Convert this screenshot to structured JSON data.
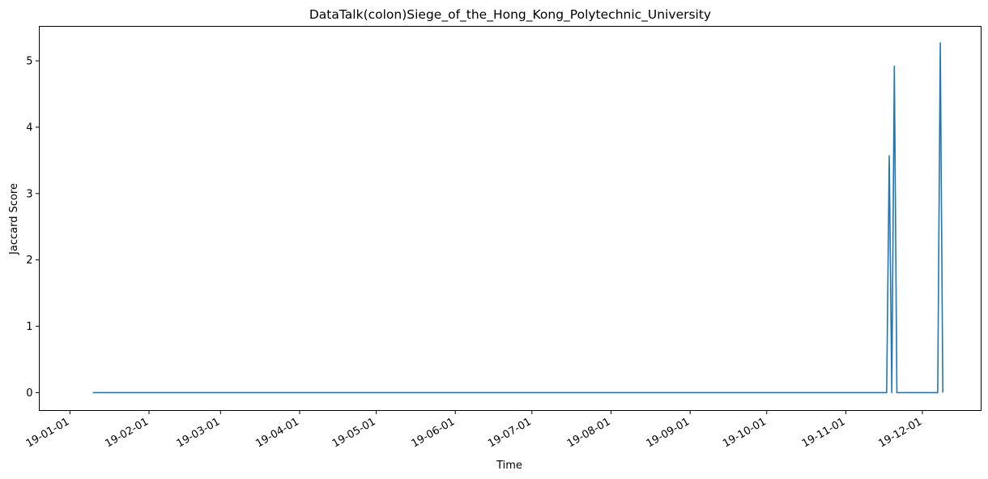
{
  "chart_data": {
    "type": "line",
    "title": "DataTalk(colon)Siege_of_the_Hong_Kong_Polytechnic_University",
    "xlabel": "Time",
    "ylabel": "Jaccard Score",
    "x_ticks": [
      "19-01-01",
      "19-02-01",
      "19-03-01",
      "19-04-01",
      "19-05-01",
      "19-06-01",
      "19-07-01",
      "19-08-01",
      "19-09-01",
      "19-10-01",
      "19-11-01",
      "19-12-01"
    ],
    "y_ticks": [
      "0",
      "1",
      "2",
      "3",
      "4",
      "5"
    ],
    "xlim": [
      "2018-12-20",
      "2019-12-24"
    ],
    "ylim": [
      -0.27,
      5.52
    ],
    "grid": false,
    "line_color": "#1f77b4",
    "series": [
      {
        "x": [
          "2019-01-10",
          "2019-11-17",
          "2019-11-18",
          "2019-11-19",
          "2019-11-20",
          "2019-11-21",
          "2019-11-22",
          "2019-12-07",
          "2019-12-08",
          "2019-12-09"
        ],
        "values": [
          0,
          0,
          3.57,
          0,
          4.92,
          0,
          0,
          0,
          5.27,
          0
        ]
      }
    ]
  }
}
